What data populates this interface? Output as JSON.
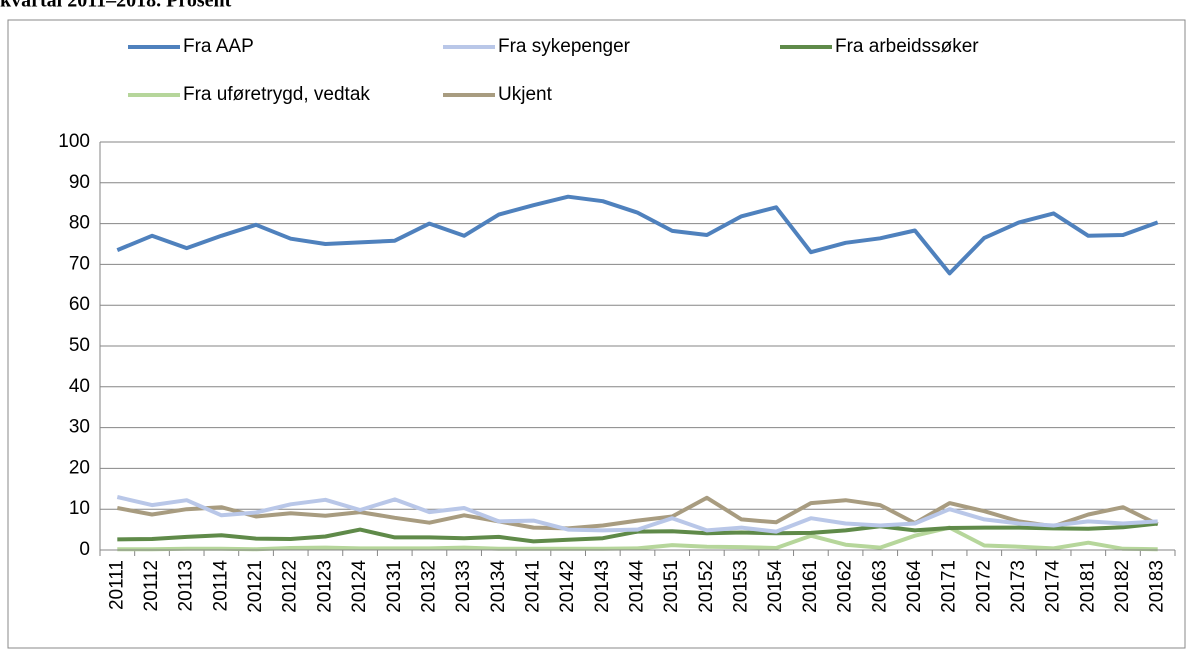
{
  "chart_data": {
    "type": "line",
    "title": "kvartal 2011–2018. Prosent",
    "categories": [
      "20111",
      "20112",
      "20113",
      "20114",
      "20121",
      "20122",
      "20123",
      "20124",
      "20131",
      "20132",
      "20133",
      "20134",
      "20141",
      "20142",
      "20143",
      "20144",
      "20151",
      "20152",
      "20153",
      "20154",
      "20161",
      "20162",
      "20163",
      "20164",
      "20171",
      "20172",
      "20173",
      "20174",
      "20181",
      "20182",
      "20183"
    ],
    "series": [
      {
        "name": "Fra AAP",
        "color": "#4f81bd",
        "values": [
          73.5,
          77,
          74,
          77,
          79.7,
          76.3,
          75,
          75.4,
          75.8,
          80,
          77,
          82.2,
          84.5,
          86.6,
          85.5,
          82.7,
          78.2,
          77.2,
          81.8,
          84,
          73,
          75.3,
          76.4,
          78.3,
          67.8,
          76.5,
          80.3,
          82.5,
          77,
          77.2,
          80.3
        ]
      },
      {
        "name": "Fra sykepenger",
        "color": "#b9c7e8",
        "values": [
          13,
          11,
          12.2,
          8.5,
          9.2,
          11.2,
          12.3,
          9.8,
          12.4,
          9.3,
          10.3,
          7,
          7.2,
          5,
          4.8,
          5,
          7.8,
          4.8,
          5.5,
          4.5,
          7.8,
          6.5,
          6,
          6.5,
          10,
          7.5,
          6.5,
          6,
          7,
          6.5,
          7
        ]
      },
      {
        "name": "Fra arbeidssøker",
        "color": "#5f8a49",
        "values": [
          2.6,
          2.7,
          3.2,
          3.6,
          2.8,
          2.7,
          3.3,
          5,
          3.1,
          3.1,
          2.9,
          3.2,
          2.1,
          2.5,
          2.9,
          4.5,
          4.6,
          4.1,
          4.3,
          4.1,
          4.2,
          4.8,
          5.8,
          4.8,
          5.4,
          5.5,
          5.5,
          5.3,
          5.2,
          5.6,
          6.5
        ]
      },
      {
        "name": "Fra uføretrygd, vedtak",
        "color": "#b6d69b",
        "values": [
          0.2,
          0.2,
          0.3,
          0.3,
          0.2,
          0.5,
          0.6,
          0.4,
          0.4,
          0.4,
          0.6,
          0.3,
          0.3,
          0.3,
          0.3,
          0.4,
          1.2,
          0.8,
          0.7,
          0.5,
          3.5,
          1.3,
          0.6,
          3.5,
          5.5,
          1.1,
          0.8,
          0.4,
          1.8,
          0.3,
          0.2
        ]
      },
      {
        "name": "Ukjent",
        "color": "#a89c80",
        "values": [
          10.3,
          8.7,
          10,
          10.5,
          8.2,
          9,
          8.4,
          9.3,
          7.9,
          6.7,
          8.5,
          7,
          5.5,
          5.3,
          6,
          7.2,
          8.2,
          12.8,
          7.5,
          6.8,
          11.5,
          12.2,
          11,
          6.6,
          11.5,
          9.5,
          7,
          5.8,
          8.7,
          10.5,
          6.3
        ]
      }
    ],
    "ylim": [
      0,
      100
    ],
    "yticks": [
      0,
      10,
      20,
      30,
      40,
      50,
      60,
      70,
      80,
      90,
      100
    ],
    "grid": true,
    "legend": "top"
  }
}
